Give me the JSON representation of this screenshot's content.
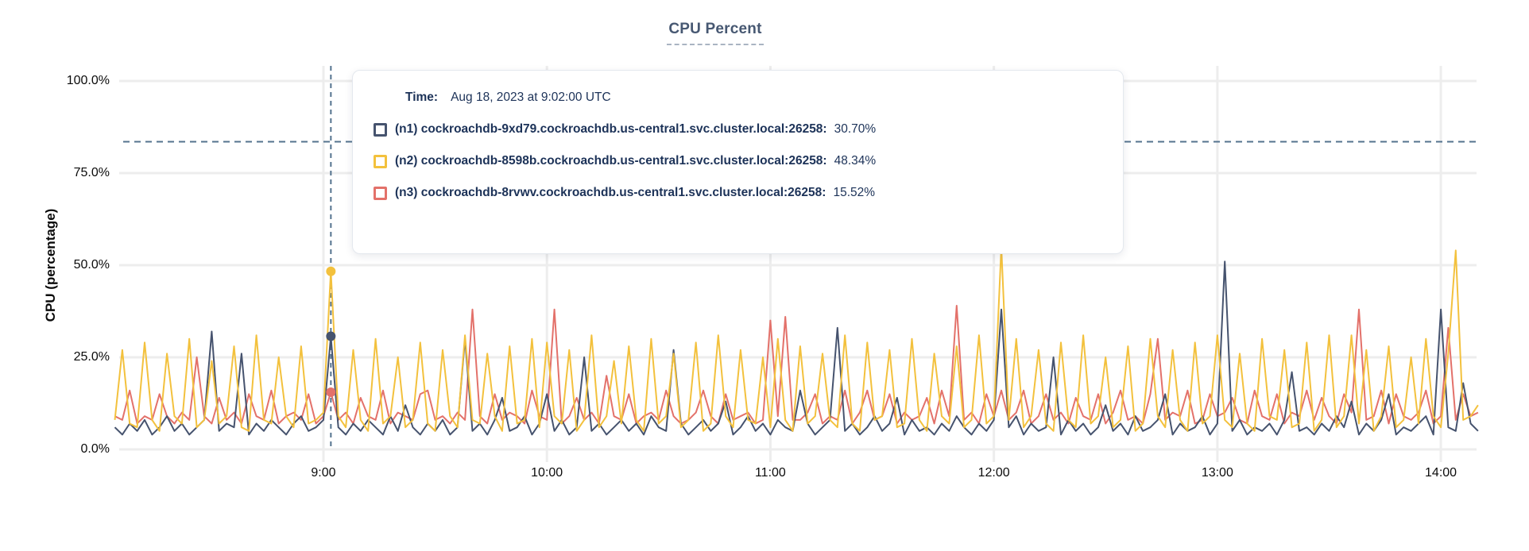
{
  "chart": {
    "title": "CPU Percent",
    "ylabel": "CPU (percentage)"
  },
  "tooltip": {
    "time_label": "Time:",
    "time_value": "Aug 18, 2023 at 9:02:00 UTC",
    "series": [
      {
        "label": "(n1) cockroachdb-9xd79.cockroachdb.us-central1.svc.cluster.local:26258:",
        "value": "30.70%"
      },
      {
        "label": "(n2) cockroachdb-8598b.cockroachdb.us-central1.svc.cluster.local:26258:",
        "value": "48.34%"
      },
      {
        "label": "(n3) cockroachdb-8rvwv.cockroachdb.us-central1.svc.cluster.local:26258:",
        "value": "15.52%"
      }
    ]
  },
  "colors": {
    "title": "#475872",
    "tooltip_text": "#1c3258",
    "grid": "#ededed",
    "dashed_guides": "#54738e",
    "n1": "#46536e",
    "n2": "#f3c13d",
    "n3": "#e3716a"
  },
  "chart_data": {
    "type": "line",
    "title": "CPU Percent",
    "xlabel": "",
    "ylabel": "CPU (percentage)",
    "ylim": [
      0,
      100
    ],
    "grid": true,
    "y_ticks": [
      {
        "value": 100,
        "label": "100.0%"
      },
      {
        "value": 75,
        "label": "75.0%"
      },
      {
        "value": 50,
        "label": "50.0%"
      },
      {
        "value": 25,
        "label": "25.0%"
      },
      {
        "value": 0,
        "label": "0.0%"
      }
    ],
    "x_ticks": [
      {
        "minutes": 56,
        "label": "9:00"
      },
      {
        "minutes": 116,
        "label": "10:00"
      },
      {
        "minutes": 176,
        "label": "11:00"
      },
      {
        "minutes": 236,
        "label": "12:00"
      },
      {
        "minutes": 296,
        "label": "13:00"
      },
      {
        "minutes": 356,
        "label": "14:00"
      }
    ],
    "x_start_time": "8:04",
    "x_step_minutes": 2,
    "threshold_percent": 83.5,
    "hover": {
      "time": "9:02:00 UTC",
      "index": 29,
      "points": [
        {
          "series": "n1",
          "value": 30.7
        },
        {
          "series": "n2",
          "value": 48.34
        },
        {
          "series": "n3",
          "value": 15.52
        }
      ]
    },
    "series": [
      {
        "name": "(n1) cockroachdb-9xd79.cockroachdb.us-central1.svc.cluster.local:26258",
        "color": "#46536e",
        "values": [
          6,
          4,
          7,
          5,
          8,
          4,
          6,
          9,
          5,
          7,
          4,
          6,
          8,
          32,
          5,
          7,
          6,
          26,
          4,
          7,
          5,
          8,
          6,
          4,
          7,
          9,
          5,
          6,
          8,
          30.7,
          6,
          4,
          7,
          5,
          8,
          6,
          4,
          9,
          5,
          12,
          6,
          4,
          7,
          5,
          8,
          4,
          6,
          30,
          5,
          7,
          4,
          8,
          14,
          5,
          6,
          9,
          4,
          7,
          15,
          5,
          8,
          4,
          6,
          25,
          5,
          7,
          4,
          6,
          8,
          5,
          7,
          4,
          9,
          6,
          5,
          27,
          7,
          4,
          6,
          8,
          5,
          7,
          13,
          4,
          6,
          9,
          5,
          7,
          4,
          8,
          6,
          5,
          16,
          7,
          4,
          6,
          8,
          33,
          5,
          7,
          4,
          6,
          9,
          5,
          7,
          14,
          4,
          8,
          5,
          6,
          4,
          7,
          5,
          9,
          6,
          4,
          7,
          5,
          8,
          38,
          6,
          9,
          4,
          7,
          5,
          6,
          25,
          4,
          8,
          5,
          7,
          4,
          6,
          12,
          5,
          7,
          4,
          9,
          5,
          6,
          8,
          15,
          4,
          7,
          5,
          6,
          9,
          4,
          7,
          51,
          5,
          8,
          4,
          6,
          5,
          7,
          4,
          8,
          21,
          5,
          6,
          4,
          7,
          5,
          9,
          6,
          13,
          4,
          7,
          5,
          8,
          15,
          4,
          6,
          5,
          7,
          9,
          4,
          38,
          6,
          5,
          18,
          7,
          5
        ]
      },
      {
        "name": "(n2) cockroachdb-8598b.cockroachdb.us-central1.svc.cluster.local:26258",
        "color": "#f3c13d",
        "values": [
          8,
          27,
          7,
          6,
          29,
          8,
          5,
          26,
          9,
          7,
          30,
          6,
          8,
          24,
          7,
          9,
          28,
          6,
          5,
          31,
          8,
          7,
          25,
          9,
          6,
          28,
          7,
          8,
          10,
          48.34,
          9,
          6,
          27,
          8,
          5,
          30,
          7,
          9,
          25,
          6,
          8,
          29,
          7,
          5,
          27,
          9,
          6,
          31,
          8,
          7,
          26,
          9,
          5,
          28,
          7,
          8,
          30,
          6,
          29,
          9,
          7,
          27,
          5,
          8,
          31,
          6,
          9,
          24,
          7,
          28,
          8,
          5,
          30,
          7,
          9,
          26,
          6,
          8,
          29,
          5,
          7,
          31,
          9,
          6,
          27,
          8,
          7,
          25,
          6,
          30,
          8,
          5,
          28,
          7,
          9,
          26,
          8,
          6,
          31,
          7,
          5,
          29,
          8,
          9,
          27,
          6,
          7,
          30,
          8,
          5,
          26,
          9,
          7,
          28,
          6,
          8,
          31,
          7,
          9,
          55,
          8,
          30,
          6,
          9,
          27,
          7,
          5,
          29,
          8,
          6,
          31,
          7,
          9,
          25,
          6,
          8,
          28,
          5,
          7,
          30,
          9,
          6,
          27,
          8,
          5,
          29,
          7,
          9,
          31,
          8,
          6,
          26,
          7,
          5,
          30,
          9,
          8,
          27,
          6,
          7,
          29,
          5,
          8,
          31,
          6,
          9,
          31,
          7,
          27,
          5,
          9,
          28,
          6,
          8,
          25,
          7,
          30,
          9,
          6,
          26,
          54,
          8,
          9,
          12
        ]
      },
      {
        "name": "(n3) cockroachdb-8rvwv.cockroachdb.us-central1.svc.cluster.local:26258",
        "color": "#e3716a",
        "values": [
          9,
          8,
          16,
          7,
          9,
          8,
          15,
          9,
          7,
          10,
          8,
          25,
          9,
          7,
          14,
          8,
          10,
          7,
          15,
          9,
          8,
          16,
          7,
          9,
          10,
          8,
          15,
          7,
          9,
          15.52,
          8,
          10,
          7,
          14,
          9,
          8,
          16,
          7,
          10,
          9,
          8,
          15,
          16,
          8,
          9,
          7,
          10,
          8,
          38,
          9,
          7,
          15,
          8,
          10,
          9,
          7,
          16,
          9,
          8,
          38,
          7,
          9,
          14,
          8,
          10,
          7,
          20,
          9,
          8,
          15,
          7,
          9,
          10,
          8,
          16,
          9,
          7,
          8,
          10,
          16,
          9,
          7,
          15,
          8,
          9,
          10,
          7,
          8,
          35,
          9,
          36,
          8,
          8,
          10,
          15,
          7,
          9,
          8,
          16,
          7,
          10,
          16,
          8,
          9,
          15,
          7,
          10,
          8,
          9,
          14,
          7,
          16,
          9,
          39,
          8,
          10,
          7,
          15,
          9,
          16,
          8,
          10,
          16,
          7,
          9,
          15,
          8,
          10,
          7,
          14,
          9,
          8,
          15,
          7,
          10,
          16,
          8,
          9,
          7,
          15,
          30,
          8,
          10,
          9,
          16,
          7,
          8,
          15,
          9,
          10,
          14,
          8,
          7,
          16,
          9,
          8,
          15,
          7,
          10,
          9,
          16,
          8,
          14,
          9,
          7,
          15,
          10,
          38,
          8,
          9,
          16,
          7,
          15,
          9,
          8,
          10,
          16,
          7,
          9,
          33,
          8,
          15,
          9,
          10
        ]
      }
    ]
  }
}
